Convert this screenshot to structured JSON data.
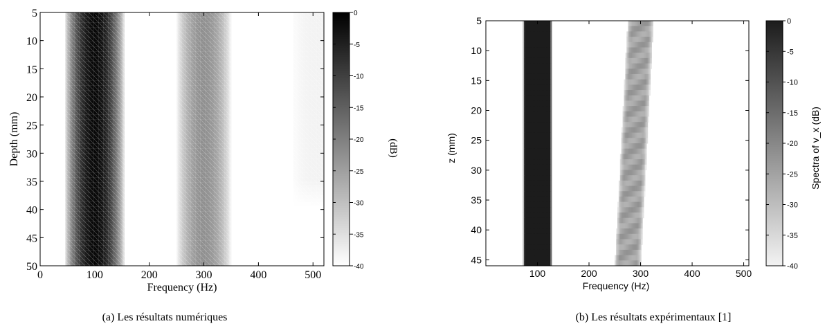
{
  "chart_data": [
    {
      "type": "heatmap",
      "panel_caption": "(a) Les résultats numériques",
      "xlabel": "Frequency (Hz)",
      "ylabel": "Depth (mm)",
      "colorbar_label": "(dB)",
      "xlim": [
        0,
        520
      ],
      "ylim": [
        5,
        50
      ],
      "y_inverted": true,
      "x_ticks": [
        "0",
        "100",
        "200",
        "300",
        "400",
        "500"
      ],
      "y_ticks": [
        "5",
        "10",
        "15",
        "20",
        "25",
        "30",
        "35",
        "40",
        "45",
        "50"
      ],
      "colorbar_range": [
        -40,
        0
      ],
      "colorbar_ticks": [
        "0",
        "-5",
        "-10",
        "-15",
        "-20",
        "-25",
        "-30",
        "-35",
        "-40"
      ],
      "colormap": "gray (white = -40 dB, black = 0 dB)",
      "grid_overlay": true,
      "bands": [
        {
          "freq_center": 100,
          "freq_halfwidth": 55,
          "level_db": 0
        },
        {
          "freq_center": 300,
          "freq_halfwidth": 50,
          "level_db": -22
        },
        {
          "freq_center": 505,
          "freq_halfwidth": 45,
          "level_db": -38,
          "depth_range": [
            5,
            35
          ]
        }
      ]
    },
    {
      "type": "heatmap",
      "panel_caption": "(b) Les résultats expérimentaux [1]",
      "xlabel": "Frequency (Hz)",
      "ylabel": "z (mm)",
      "colorbar_label": "Spectra of v_x (dB)",
      "xlim": [
        0,
        510
      ],
      "ylim": [
        5,
        46
      ],
      "y_inverted": true,
      "x_ticks": [
        "100",
        "200",
        "300",
        "400",
        "500"
      ],
      "y_ticks": [
        "5",
        "10",
        "15",
        "20",
        "25",
        "30",
        "35",
        "40",
        "45"
      ],
      "colorbar_range": [
        -40,
        0
      ],
      "colorbar_ticks": [
        "0",
        "-5",
        "-10",
        "-15",
        "-20",
        "-25",
        "-30",
        "-35",
        "-40"
      ],
      "colormap": "gray (light = -40 dB, black = 0 dB)",
      "grid_overlay": false,
      "bands": [
        {
          "freq_center": 100,
          "freq_halfwidth": 28,
          "level_db": 0
        },
        {
          "freq_center": 300,
          "freq_halfwidth": 25,
          "level_db": -25,
          "drift_hz_over_depth": -25
        }
      ]
    }
  ]
}
